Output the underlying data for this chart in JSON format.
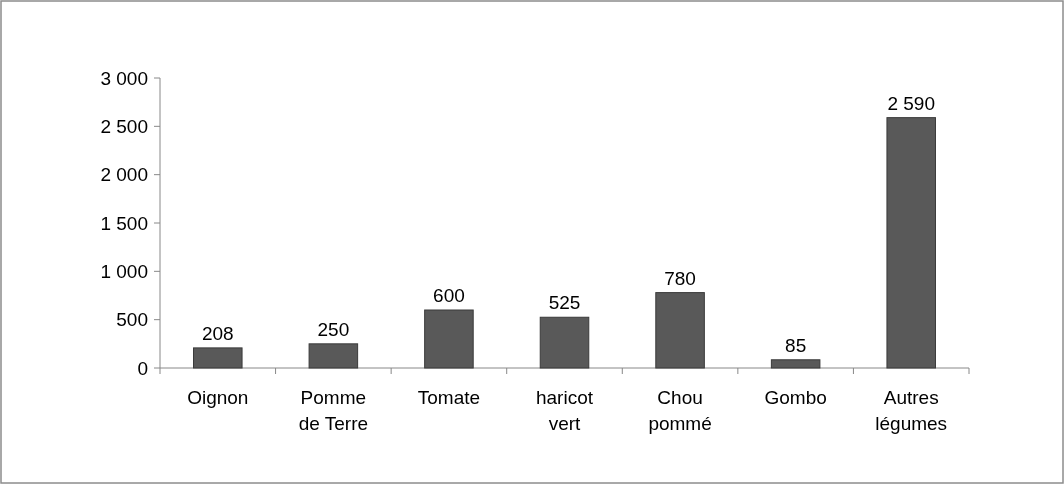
{
  "chart_data": {
    "type": "bar",
    "categories": [
      "Oignon",
      "Pomme de Terre",
      "Tomate",
      "haricot vert",
      "Chou pommé",
      "Gombo",
      "Autres légumes"
    ],
    "values": [
      208,
      250,
      600,
      525,
      780,
      85,
      2590
    ],
    "color": "#595959",
    "ylim": [
      0,
      3000
    ],
    "yticks": [
      {
        "value": 0,
        "label": "0"
      },
      {
        "value": 500,
        "label": "500"
      },
      {
        "value": 1000,
        "label": "1 000"
      },
      {
        "value": 1500,
        "label": "1 500"
      },
      {
        "value": 2000,
        "label": "2 000"
      },
      {
        "value": 2500,
        "label": "2 500"
      },
      {
        "value": 3000,
        "label": "3 000"
      }
    ],
    "data_labels": true,
    "grid": false
  }
}
